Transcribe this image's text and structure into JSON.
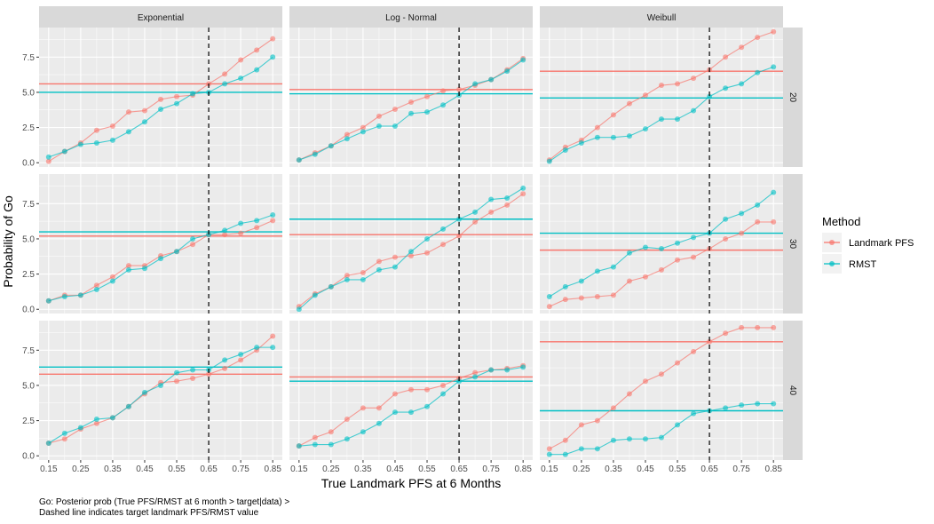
{
  "chart_data": {
    "type": "line",
    "facet_columns": [
      "Exponential",
      "Log - Normal",
      "Weibull"
    ],
    "facet_rows": [
      "20",
      "30",
      "40"
    ],
    "x": [
      0.15,
      0.2,
      0.25,
      0.3,
      0.35,
      0.4,
      0.45,
      0.5,
      0.55,
      0.6,
      0.65,
      0.7,
      0.75,
      0.8,
      0.85
    ],
    "x_ticks": [
      "0.15",
      "0.25",
      "0.35",
      "0.45",
      "0.55",
      "0.65",
      "0.75",
      "0.85"
    ],
    "y_ticks": [
      "0.0",
      "2.5",
      "5.0",
      "7.5"
    ],
    "ylim": [
      -0.3,
      9.6
    ],
    "xlim": [
      0.12,
      0.88
    ],
    "xlabel": "True Landmark PFS at 6 Months",
    "ylabel": "Probability of Go",
    "legend": {
      "title": "Method",
      "position": "right",
      "entries": [
        {
          "name": "Landmark PFS",
          "color": "#F8766D"
        },
        {
          "name": "RMST",
          "color": "#00BFC4"
        }
      ]
    },
    "target_line": {
      "x": 0.65,
      "style": "dashed"
    },
    "caption": [
      "Go: Posterior prob (True PFS/RMST at 6 month > target|data) >",
      "Dashed line indicates target landmark PFS/RMST value"
    ],
    "panels": [
      {
        "col": 0,
        "row": 0,
        "landmark": [
          0.1,
          0.8,
          1.4,
          2.3,
          2.6,
          3.6,
          3.7,
          4.5,
          4.7,
          4.8,
          5.6,
          6.3,
          7.3,
          8.0,
          8.8
        ],
        "rmst": [
          0.4,
          0.8,
          1.3,
          1.4,
          1.6,
          2.2,
          2.9,
          3.8,
          4.2,
          4.9,
          5.0,
          5.6,
          6.0,
          6.6,
          7.5
        ],
        "landmark_ref": 5.6,
        "rmst_ref": 5.0
      },
      {
        "col": 1,
        "row": 0,
        "landmark": [
          0.2,
          0.7,
          1.2,
          2.0,
          2.5,
          3.3,
          3.8,
          4.3,
          4.7,
          5.1,
          5.2,
          5.5,
          5.9,
          6.6,
          7.4
        ],
        "rmst": [
          0.2,
          0.6,
          1.2,
          1.7,
          2.2,
          2.6,
          2.6,
          3.5,
          3.6,
          4.1,
          4.8,
          5.6,
          5.9,
          6.5,
          7.3
        ],
        "landmark_ref": 5.2,
        "rmst_ref": 4.9
      },
      {
        "col": 2,
        "row": 0,
        "landmark": [
          0.2,
          1.1,
          1.6,
          2.5,
          3.4,
          4.2,
          4.8,
          5.5,
          5.6,
          6.0,
          6.6,
          7.5,
          8.2,
          8.9,
          9.3
        ],
        "rmst": [
          0.1,
          0.9,
          1.4,
          1.8,
          1.8,
          1.9,
          2.4,
          3.1,
          3.1,
          3.7,
          4.7,
          5.3,
          5.6,
          6.4,
          6.8
        ],
        "landmark_ref": 6.5,
        "rmst_ref": 4.6
      },
      {
        "col": 0,
        "row": 1,
        "landmark": [
          0.6,
          1.0,
          1.0,
          1.7,
          2.3,
          3.1,
          3.1,
          3.8,
          4.1,
          4.6,
          5.3,
          5.3,
          5.4,
          5.8,
          6.3
        ],
        "rmst": [
          0.6,
          0.9,
          1.0,
          1.4,
          2.0,
          2.8,
          2.9,
          3.6,
          4.1,
          5.0,
          5.3,
          5.6,
          6.1,
          6.3,
          6.7
        ],
        "landmark_ref": 5.2,
        "rmst_ref": 5.5
      },
      {
        "col": 1,
        "row": 1,
        "landmark": [
          0.2,
          1.1,
          1.6,
          2.4,
          2.6,
          3.4,
          3.7,
          3.8,
          4.0,
          4.6,
          5.2,
          6.2,
          6.9,
          7.4,
          8.2
        ],
        "rmst": [
          0.0,
          1.0,
          1.6,
          2.1,
          2.1,
          2.8,
          3.0,
          4.1,
          5.0,
          5.7,
          6.4,
          6.9,
          7.8,
          7.9,
          8.6
        ],
        "landmark_ref": 5.3,
        "rmst_ref": 6.4
      },
      {
        "col": 2,
        "row": 1,
        "landmark": [
          0.2,
          0.7,
          0.8,
          0.9,
          1.0,
          2.0,
          2.3,
          2.8,
          3.5,
          3.7,
          4.3,
          5.0,
          5.4,
          6.2,
          6.2
        ],
        "rmst": [
          0.9,
          1.6,
          2.0,
          2.7,
          3.0,
          4.0,
          4.4,
          4.3,
          4.7,
          5.1,
          5.4,
          6.4,
          6.8,
          7.4,
          8.3
        ],
        "landmark_ref": 4.2,
        "rmst_ref": 5.4
      },
      {
        "col": 0,
        "row": 2,
        "landmark": [
          0.9,
          1.2,
          1.9,
          2.3,
          2.7,
          3.5,
          4.4,
          5.2,
          5.3,
          5.5,
          5.8,
          6.2,
          6.8,
          7.5,
          8.5
        ],
        "rmst": [
          0.9,
          1.6,
          2.0,
          2.6,
          2.7,
          3.5,
          4.5,
          5.0,
          5.9,
          6.1,
          6.1,
          6.8,
          7.2,
          7.7,
          7.7
        ],
        "landmark_ref": 5.8,
        "rmst_ref": 6.3
      },
      {
        "col": 1,
        "row": 2,
        "landmark": [
          0.7,
          1.3,
          1.7,
          2.6,
          3.4,
          3.4,
          4.4,
          4.7,
          4.7,
          5.0,
          5.5,
          5.9,
          6.1,
          6.2,
          6.4
        ],
        "rmst": [
          0.7,
          0.8,
          0.8,
          1.2,
          1.7,
          2.3,
          3.1,
          3.1,
          3.5,
          4.4,
          5.3,
          5.6,
          6.1,
          6.1,
          6.3
        ],
        "landmark_ref": 5.6,
        "rmst_ref": 5.3
      },
      {
        "col": 2,
        "row": 2,
        "landmark": [
          0.5,
          1.1,
          2.2,
          2.5,
          3.4,
          4.4,
          5.3,
          5.8,
          6.6,
          7.4,
          8.1,
          8.7,
          9.1,
          9.1,
          9.1
        ],
        "rmst": [
          0.1,
          0.1,
          0.5,
          0.5,
          1.1,
          1.2,
          1.2,
          1.3,
          2.2,
          3.0,
          3.2,
          3.4,
          3.6,
          3.7,
          3.7
        ],
        "landmark_ref": 8.1,
        "rmst_ref": 3.2
      }
    ]
  }
}
